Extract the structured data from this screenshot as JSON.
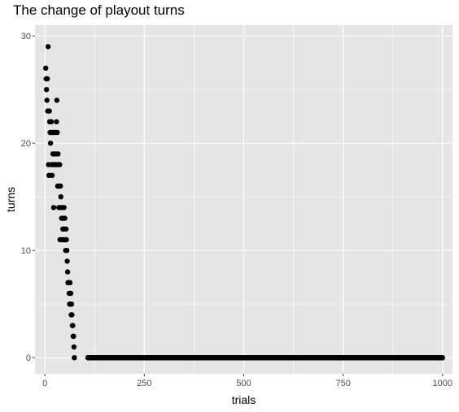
{
  "chart_data": {
    "type": "scatter",
    "title": "The change of playout turns",
    "xlabel": "trials",
    "ylabel": "turns",
    "xlim": [
      -25,
      1025
    ],
    "ylim": [
      -1.5,
      31
    ],
    "x_ticks": [
      0,
      250,
      500,
      750,
      1000
    ],
    "y_ticks": [
      0,
      10,
      20,
      30
    ],
    "grid": true,
    "legend": "none",
    "colors": {
      "panel": "#e5e5e5",
      "grid": "#ffffff",
      "point": "#000000"
    },
    "points": [
      [
        2,
        27
      ],
      [
        3,
        26
      ],
      [
        4,
        25
      ],
      [
        5,
        24
      ],
      [
        6,
        26
      ],
      [
        7,
        23
      ],
      [
        8,
        29
      ],
      [
        9,
        18
      ],
      [
        10,
        17
      ],
      [
        11,
        23
      ],
      [
        12,
        22
      ],
      [
        13,
        21
      ],
      [
        14,
        20
      ],
      [
        15,
        21
      ],
      [
        16,
        22
      ],
      [
        17,
        18
      ],
      [
        18,
        17
      ],
      [
        19,
        21
      ],
      [
        20,
        19
      ],
      [
        21,
        18
      ],
      [
        22,
        14
      ],
      [
        23,
        21
      ],
      [
        24,
        19
      ],
      [
        25,
        18
      ],
      [
        26,
        21
      ],
      [
        27,
        19
      ],
      [
        28,
        18
      ],
      [
        29,
        22
      ],
      [
        30,
        24
      ],
      [
        31,
        21
      ],
      [
        32,
        16
      ],
      [
        33,
        19
      ],
      [
        34,
        18
      ],
      [
        35,
        14
      ],
      [
        36,
        16
      ],
      [
        37,
        18
      ],
      [
        38,
        11
      ],
      [
        39,
        16
      ],
      [
        40,
        15
      ],
      [
        41,
        14
      ],
      [
        42,
        13
      ],
      [
        43,
        11
      ],
      [
        44,
        14
      ],
      [
        45,
        12
      ],
      [
        46,
        13
      ],
      [
        47,
        12
      ],
      [
        48,
        14
      ],
      [
        49,
        11
      ],
      [
        50,
        13
      ],
      [
        51,
        11
      ],
      [
        52,
        10
      ],
      [
        53,
        12
      ],
      [
        54,
        11
      ],
      [
        55,
        10
      ],
      [
        56,
        9
      ],
      [
        57,
        8
      ],
      [
        58,
        7
      ],
      [
        59,
        7
      ],
      [
        60,
        7
      ],
      [
        61,
        6
      ],
      [
        62,
        5
      ],
      [
        63,
        7
      ],
      [
        64,
        5
      ],
      [
        65,
        6
      ],
      [
        66,
        4
      ],
      [
        67,
        5
      ],
      [
        68,
        4
      ],
      [
        69,
        3
      ],
      [
        70,
        3
      ],
      [
        71,
        2
      ],
      [
        72,
        2
      ],
      [
        73,
        1
      ],
      [
        74,
        0
      ]
    ],
    "zero_run": {
      "x_start": 108,
      "x_end": 1000,
      "y": 0
    }
  }
}
